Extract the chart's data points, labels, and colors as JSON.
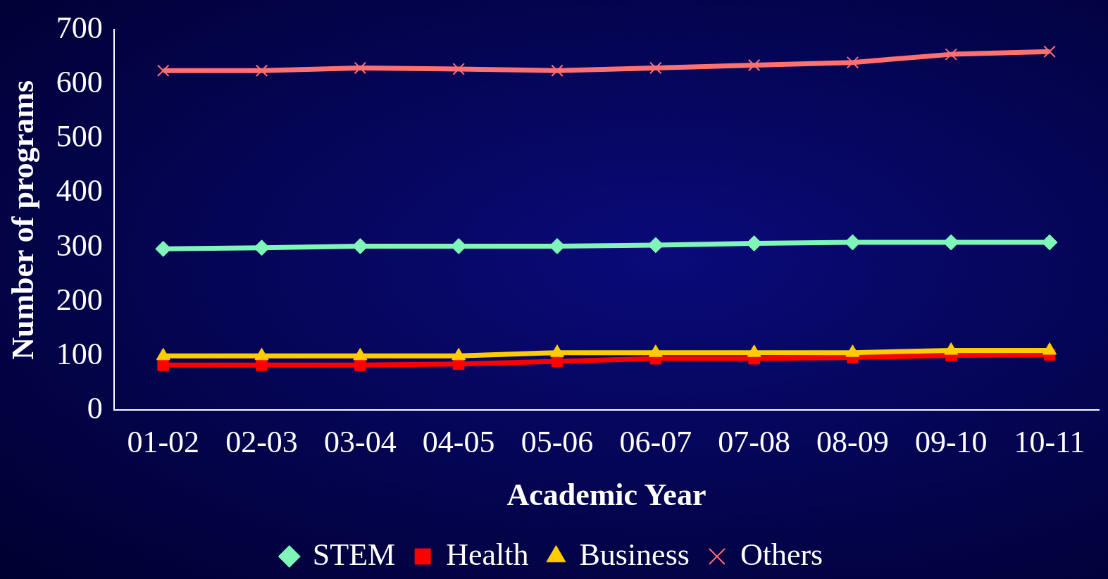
{
  "chart_data": {
    "type": "line",
    "xlabel": "Academic Year",
    "ylabel": "Number of programs",
    "categories": [
      "01-02",
      "02-03",
      "03-04",
      "04-05",
      "05-06",
      "06-07",
      "07-08",
      "08-09",
      "09-10",
      "10-11"
    ],
    "series": [
      {
        "name": "STEM",
        "color": "#7ff5b8",
        "marker": "diamond",
        "values": [
          297,
          299,
          302,
          302,
          302,
          304,
          307,
          309,
          309,
          309
        ]
      },
      {
        "name": "Health",
        "color": "#ff0000",
        "marker": "square",
        "values": [
          83,
          83,
          83,
          85,
          90,
          95,
          95,
          97,
          101,
          102
        ]
      },
      {
        "name": "Business",
        "color": "#ffcc00",
        "marker": "triangle",
        "values": [
          100,
          100,
          100,
          100,
          106,
          106,
          106,
          106,
          110,
          110
        ]
      },
      {
        "name": "Others",
        "color": "#ff7070",
        "marker": "cross",
        "values": [
          625,
          625,
          630,
          628,
          625,
          630,
          635,
          640,
          655,
          660
        ]
      }
    ],
    "ylim": [
      0,
      700
    ],
    "yticks": [
      0,
      100,
      200,
      300,
      400,
      500,
      600,
      700
    ],
    "grid": false,
    "legend": "bottom"
  }
}
